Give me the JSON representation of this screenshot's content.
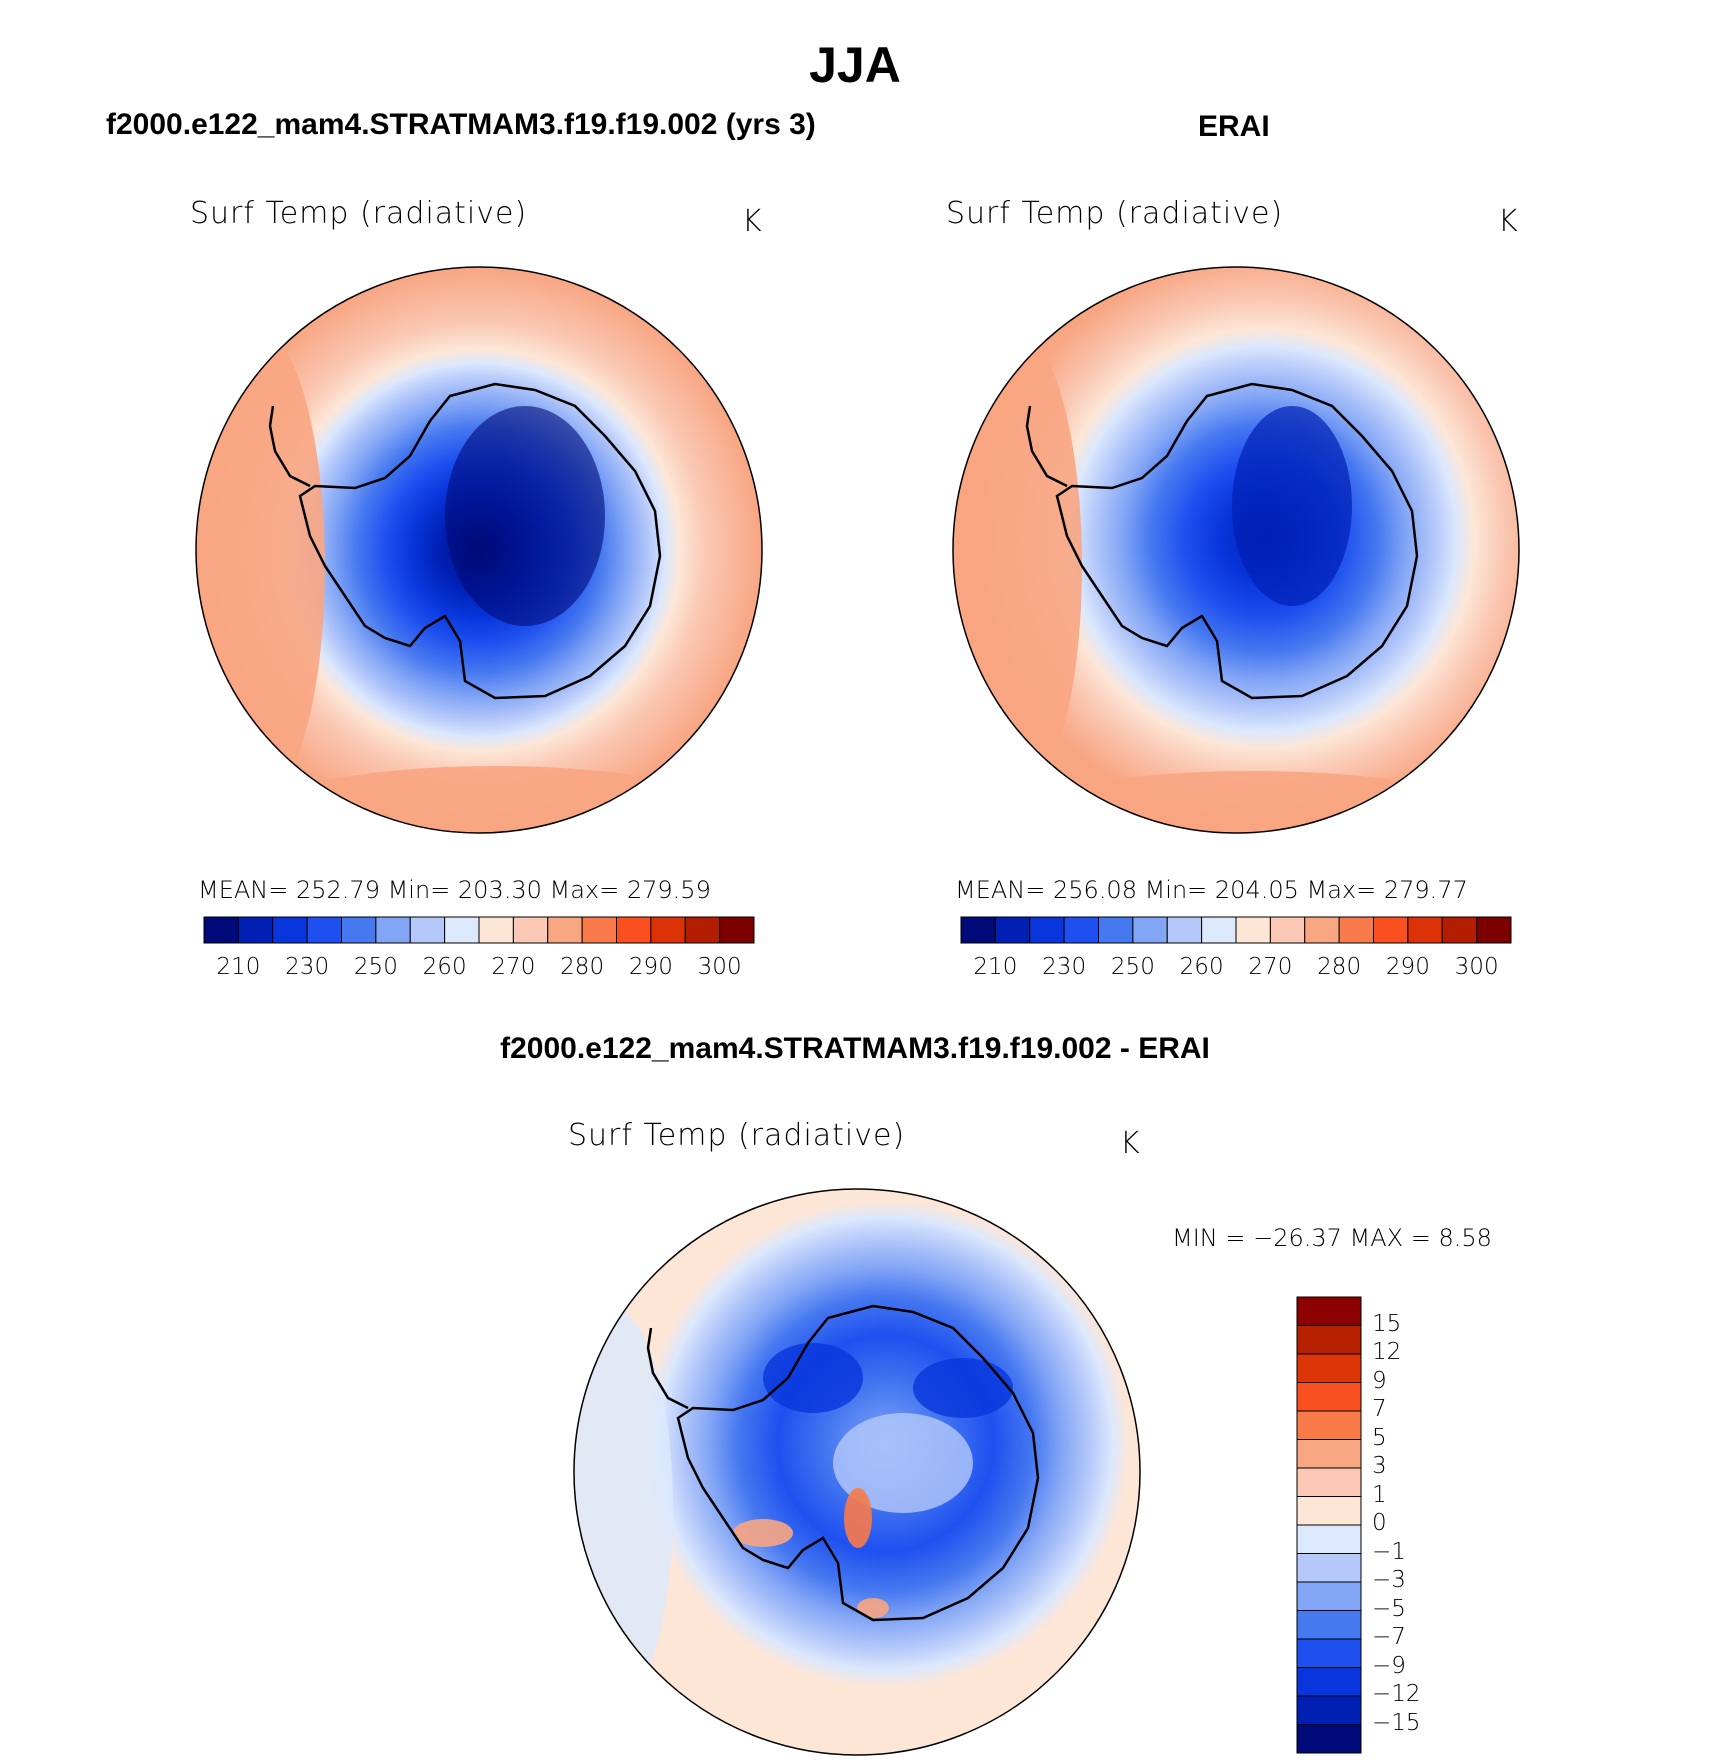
{
  "figure_title": "JJA",
  "units": "K",
  "variable": "Surf Temp (radiative)",
  "panels": [
    {
      "title": "f2000.e122_mam4.STRATMAM3.f19.f19.002 (yrs 3)",
      "stats": "MEAN=  252.79   Min=  203.30   Max=  279.59"
    },
    {
      "title": "ERAI",
      "stats": "MEAN=  256.08   Min=  204.05   Max=  279.77"
    }
  ],
  "diff_panel": {
    "title": "f2000.e122_mam4.STRATMAM3.f19.f19.002 - ERAI",
    "stats": "MIN = −26.37 MAX =    8.58"
  },
  "abs_colorbar": {
    "colors": [
      "#000a78",
      "#0020b4",
      "#0836dc",
      "#1e50f0",
      "#4678f0",
      "#82a5f5",
      "#b4c8fa",
      "#dce8fc",
      "#fde6d6",
      "#fac8b4",
      "#f8a582",
      "#f87a4a",
      "#fa5020",
      "#dc3208",
      "#b41e00",
      "#7c0000"
    ],
    "tick_labels": [
      "210",
      "230",
      "250",
      "260",
      "270",
      "280",
      "290",
      "300"
    ]
  },
  "diff_colorbar": {
    "colors": [
      "#8c0000",
      "#b42000",
      "#dc3508",
      "#f8501e",
      "#f87a46",
      "#f8a582",
      "#fac8b4",
      "#fde6d6",
      "#dce8fc",
      "#b4c8fa",
      "#82a5f5",
      "#4678f0",
      "#1e50f0",
      "#0836dc",
      "#0020b4",
      "#000a78"
    ],
    "tick_labels": [
      "15",
      "12",
      "9",
      "7",
      "5",
      "3",
      "1",
      "0",
      "−1",
      "−3",
      "−5",
      "−7",
      "−9",
      "−12",
      "−15"
    ]
  }
}
